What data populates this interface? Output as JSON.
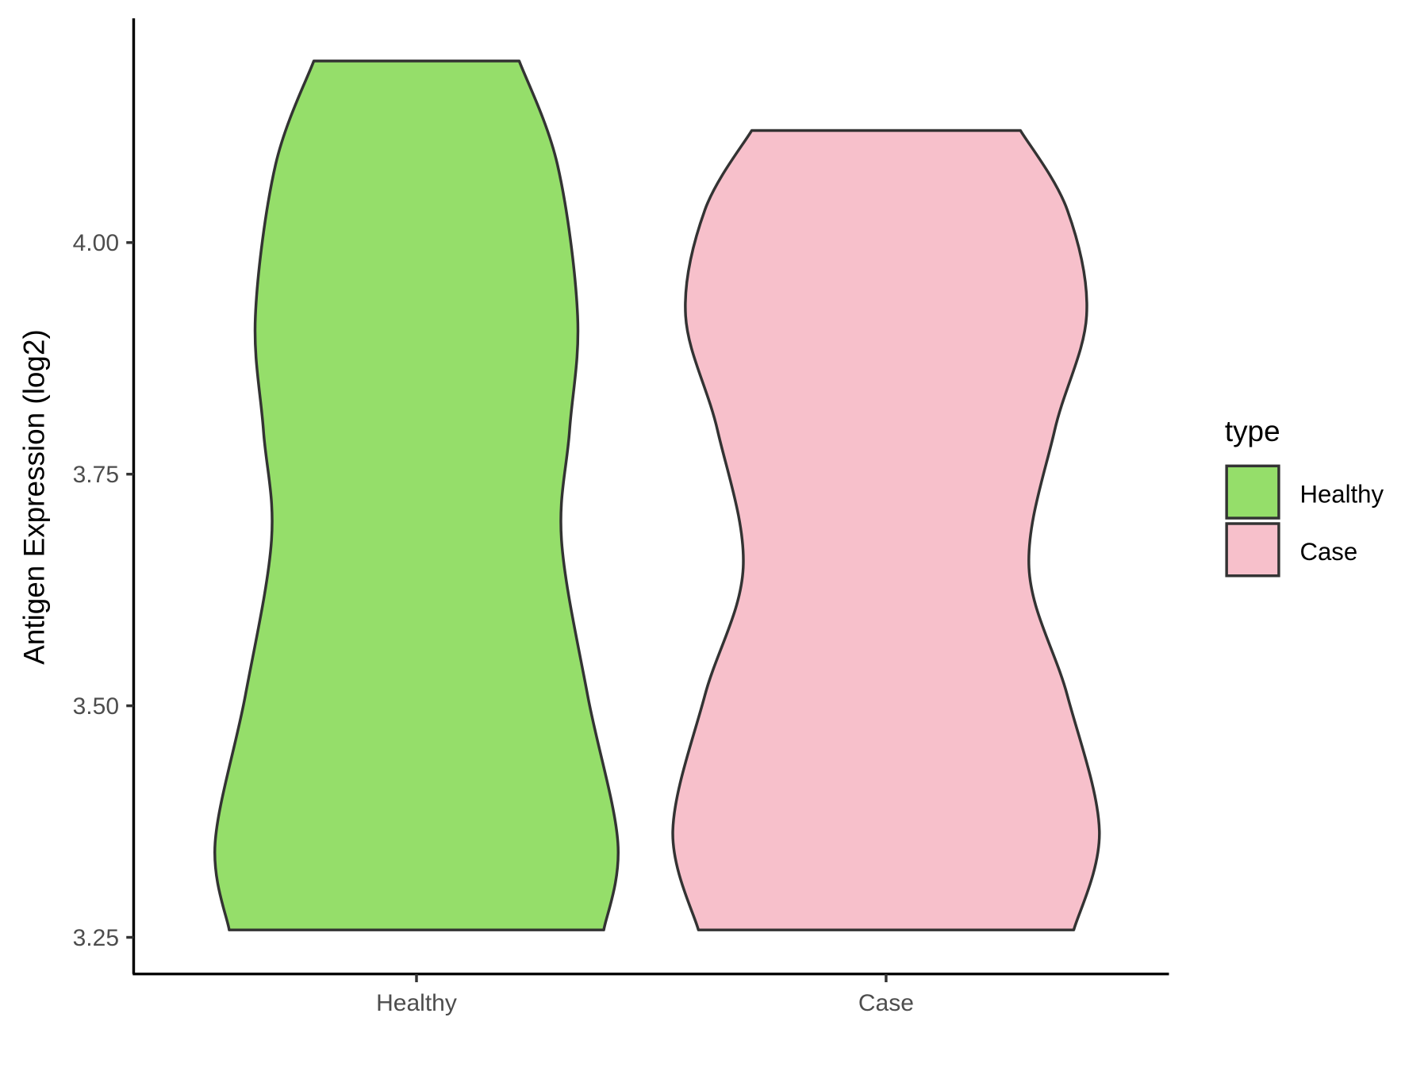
{
  "chart_data": {
    "type": "violin",
    "title": "",
    "xlabel": "",
    "ylabel": "Antigen Expression (log2)",
    "categories": [
      "Healthy",
      "Case"
    ],
    "ylim": [
      3.21,
      4.24
    ],
    "yticks": [
      "3.25",
      "3.50",
      "3.75",
      "4.00"
    ],
    "ytick_values": [
      3.25,
      3.5,
      3.75,
      4.0
    ],
    "grid": false,
    "legend": {
      "title": "type",
      "position": "right",
      "entries": [
        "Healthy",
        "Case"
      ]
    },
    "series": [
      {
        "name": "Healthy",
        "color": "#95DE6A",
        "min": 3.258,
        "max": 4.196,
        "density": [
          [
            3.258,
            0.93
          ],
          [
            3.352,
            1.0
          ],
          [
            3.511,
            0.85
          ],
          [
            3.679,
            0.72
          ],
          [
            3.797,
            0.76
          ],
          [
            3.921,
            0.8
          ],
          [
            4.084,
            0.7
          ],
          [
            4.196,
            0.51
          ]
        ]
      },
      {
        "name": "Case",
        "color": "#F7C0CB",
        "min": 3.258,
        "max": 4.121,
        "density": [
          [
            3.258,
            0.88
          ],
          [
            3.365,
            1.0
          ],
          [
            3.511,
            0.85
          ],
          [
            3.649,
            0.67
          ],
          [
            3.797,
            0.79
          ],
          [
            3.921,
            0.94
          ],
          [
            4.035,
            0.85
          ],
          [
            4.121,
            0.63
          ]
        ]
      }
    ],
    "outline_color": "#333333"
  }
}
